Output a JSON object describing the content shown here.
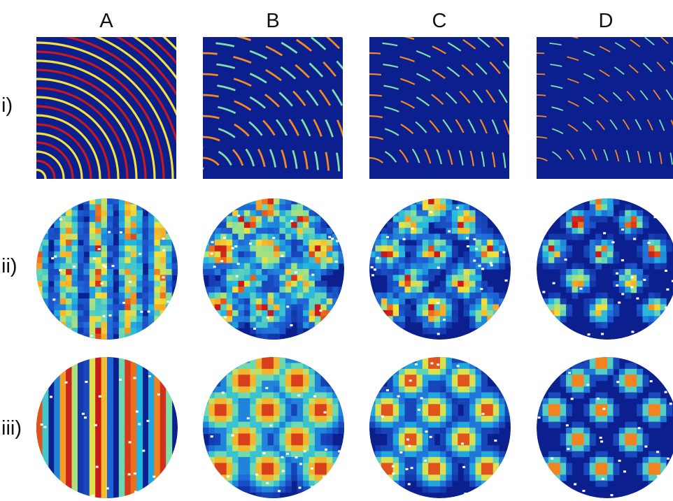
{
  "columns": [
    {
      "label": "A",
      "peak_count": 0,
      "spot_width": 1.0,
      "arc_spacing": 4.5
    },
    {
      "label": "B",
      "peak_count": 11,
      "spot_width": 0.95,
      "arc_spacing": 5.5
    },
    {
      "label": "C",
      "peak_count": 11,
      "spot_width": 0.75,
      "arc_spacing": 5.5
    },
    {
      "label": "D",
      "peak_count": 11,
      "spot_width": 0.55,
      "arc_spacing": 5.5
    }
  ],
  "rows": [
    {
      "label": "i)",
      "kind": "wave-square"
    },
    {
      "label": "ii)",
      "kind": "spike-disk"
    },
    {
      "label": "iii)",
      "kind": "smooth-disk"
    }
  ],
  "colors": {
    "colormap": [
      "#0b1f8f",
      "#1f5fd6",
      "#22b7e0",
      "#7ee0a6",
      "#f3e03a",
      "#f58a1f",
      "#c8191c"
    ],
    "background": "#ffffff"
  }
}
